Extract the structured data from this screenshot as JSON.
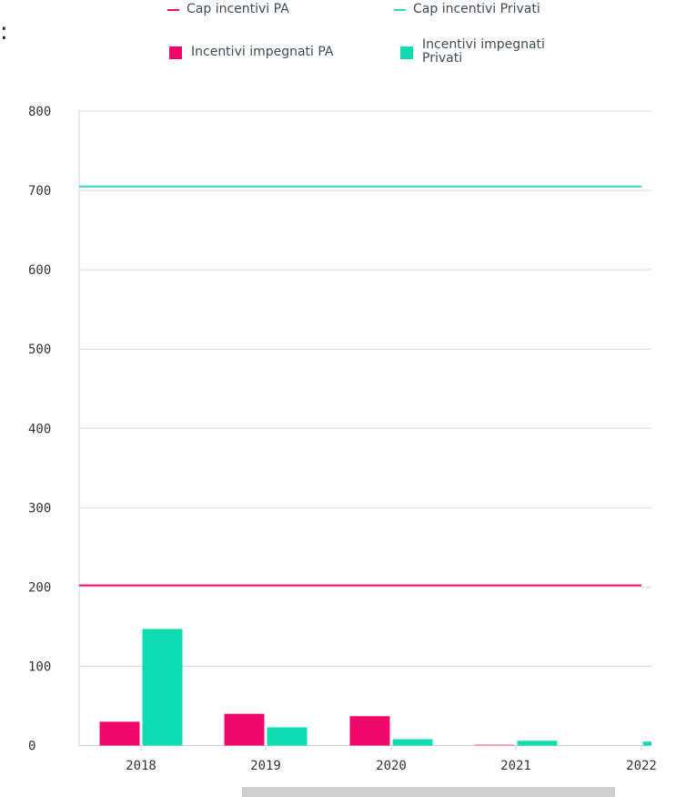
{
  "stray_text": ":",
  "chart_data": {
    "type": "bar",
    "categories": [
      "2018",
      "2019",
      "2020",
      "2021",
      "2022"
    ],
    "series": [
      {
        "name": "Incentivi impegnati PA",
        "color": "#f0076a",
        "values": [
          30,
          40,
          37,
          1,
          0
        ]
      },
      {
        "name": "Incentivi impegnati Privati",
        "color": "#0fdcb2",
        "values": [
          147,
          23,
          8,
          6,
          5
        ]
      }
    ],
    "reference_lines": [
      {
        "name": "Cap incentivi PA",
        "color": "#f0076a",
        "value": 202
      },
      {
        "name": "Cap incentivi Privati",
        "color": "#2ad7c2",
        "value": 705
      }
    ],
    "legend": [
      {
        "label": "Cap incentivi PA",
        "kind": "line",
        "color": "#f0076a"
      },
      {
        "label": "Cap incentivi Privati",
        "kind": "line",
        "color": "#2ad7c2"
      },
      {
        "label": "Incentivi impegnati PA",
        "kind": "square",
        "color": "#f0076a"
      },
      {
        "label": "Incentivi impegnati\nPrivati",
        "kind": "square",
        "color": "#0fdcb2"
      }
    ],
    "legend_position": "top",
    "yticks": [
      "800",
      "700",
      "600",
      "500",
      "400",
      "300",
      "200",
      "100",
      "0"
    ],
    "ylim": [
      0,
      800
    ],
    "grid": true,
    "title": "",
    "xlabel": "",
    "ylabel": ""
  }
}
